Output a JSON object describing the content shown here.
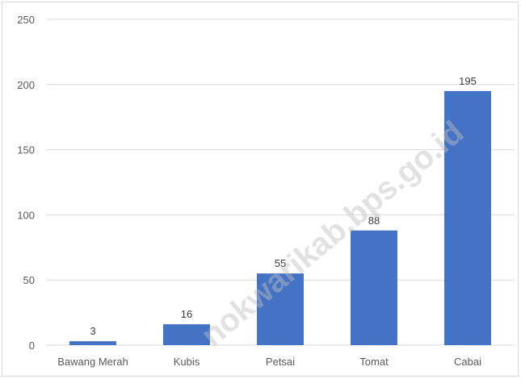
{
  "chart_data": {
    "type": "bar",
    "categories": [
      "Bawang Merah",
      "Kubis",
      "Petsai",
      "Tomat",
      "Cabai"
    ],
    "values": [
      3,
      16,
      55,
      88,
      195
    ],
    "title": "",
    "xlabel": "",
    "ylabel": "",
    "ylim": [
      0,
      250
    ],
    "yticks": [
      0,
      50,
      100,
      150,
      200,
      250
    ],
    "grid": true,
    "legend": "none",
    "bar_color": "#4472c4"
  },
  "watermark": "nokwarikab.bps.go.id"
}
